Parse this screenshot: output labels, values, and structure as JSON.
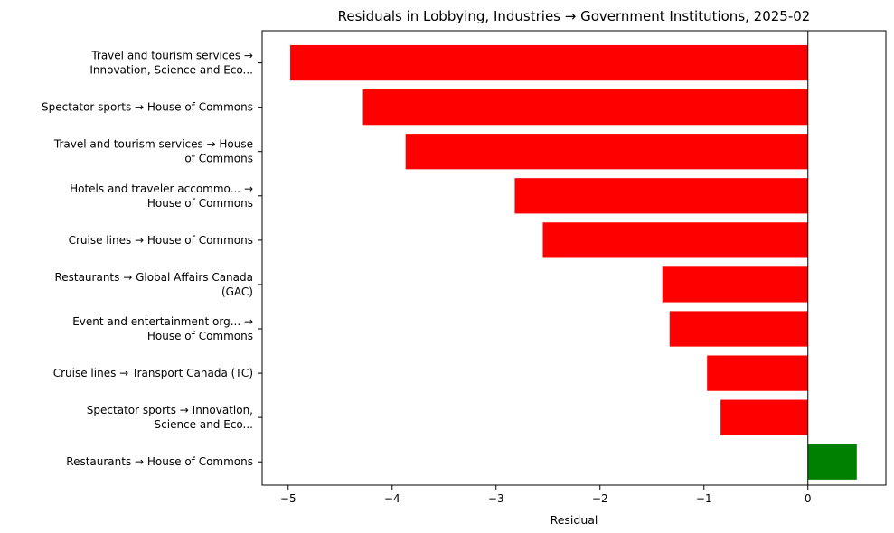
{
  "chart_data": {
    "type": "bar",
    "orientation": "horizontal",
    "title": "Residuals in Lobbying, Industries → Government Institutions, 2025-02",
    "xlabel": "Residual",
    "ylabel": "",
    "xlim": [
      -5.25,
      0.75
    ],
    "xticks": [
      -5,
      -4,
      -3,
      -2,
      -1,
      0
    ],
    "xtick_labels": [
      "−5",
      "−4",
      "−3",
      "−2",
      "−1",
      "0"
    ],
    "zero_line": true,
    "grid": false,
    "legend": "none",
    "colors": {
      "negative": "#ff0000",
      "positive": "#008000"
    },
    "categories": [
      [
        "Travel and tourism services →",
        "Innovation, Science and Eco..."
      ],
      [
        "Spectator sports → House of Commons"
      ],
      [
        "Travel and tourism services → House",
        "of Commons"
      ],
      [
        "Hotels and traveler accommo... →",
        "House of Commons"
      ],
      [
        "Cruise lines → House of Commons"
      ],
      [
        "Restaurants → Global Affairs Canada",
        "(GAC)"
      ],
      [
        "Event and entertainment org... →",
        "House of Commons"
      ],
      [
        "Cruise lines → Transport Canada (TC)"
      ],
      [
        "Spectator sports → Innovation,",
        "Science and Eco..."
      ],
      [
        "Restaurants → House of Commons"
      ]
    ],
    "values": [
      -4.98,
      -4.28,
      -3.87,
      -2.82,
      -2.55,
      -1.4,
      -1.33,
      -0.97,
      -0.84,
      0.47
    ]
  }
}
